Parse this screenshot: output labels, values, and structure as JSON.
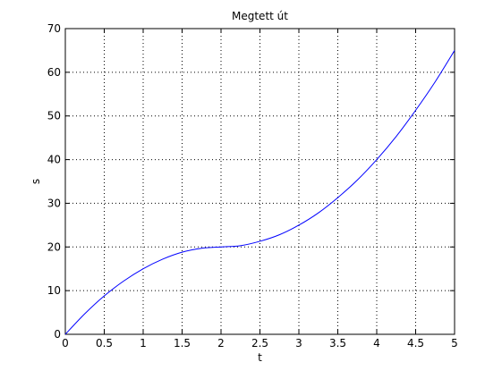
{
  "chart_data": {
    "type": "line",
    "title": "Megtett út",
    "xlabel": "t",
    "ylabel": "s",
    "xlim": [
      0,
      5
    ],
    "ylim": [
      0,
      70
    ],
    "xticks": [
      0,
      0.5,
      1,
      1.5,
      2,
      2.5,
      3,
      3.5,
      4,
      4.5,
      5
    ],
    "xtick_labels": [
      "0",
      "0.5",
      "1",
      "1.5",
      "2",
      "2.5",
      "3",
      "3.5",
      "4",
      "4.5",
      "5"
    ],
    "yticks": [
      0,
      10,
      20,
      30,
      40,
      50,
      60,
      70
    ],
    "ytick_labels": [
      "0",
      "10",
      "20",
      "30",
      "40",
      "50",
      "60",
      "70"
    ],
    "grid": true,
    "grid_style": "dotted",
    "line_color": "#0000ff",
    "series": [
      {
        "x": [
          0,
          0.25,
          0.5,
          0.75,
          1,
          1.25,
          1.5,
          1.75,
          2,
          2.25,
          2.5,
          2.75,
          3,
          3.25,
          3.5,
          3.75,
          4,
          4.25,
          4.5,
          4.75,
          5
        ],
        "values": [
          0,
          4.7,
          8.8,
          12.2,
          15.0,
          17.2,
          18.8,
          19.7,
          20.0,
          20.3,
          21.3,
          22.8,
          25.0,
          27.8,
          31.3,
          35.3,
          40.0,
          45.3,
          51.3,
          57.8,
          65.0
        ]
      }
    ]
  }
}
